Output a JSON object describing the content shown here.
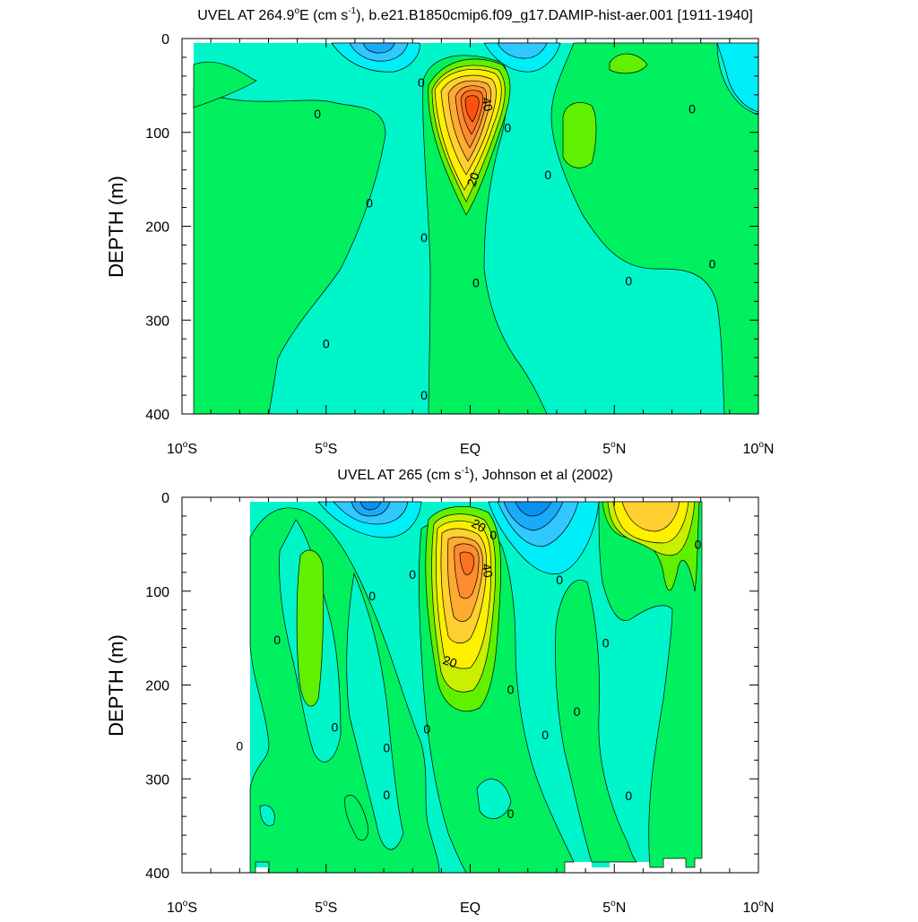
{
  "chart_data": [
    {
      "type": "contour",
      "title_prefix": "UVEL AT 264.9",
      "title_degree": "o",
      "title_mid": "E (cm s",
      "title_exp": "-1",
      "title_suffix": "), b.e21.B1850cmip6.f09_g17.DAMIP-hist-aer.001 [1911-1940]",
      "ylabel": "DEPTH (m)",
      "xlim": [
        -10,
        10
      ],
      "ylim": [
        400,
        0
      ],
      "xticks": [
        {
          "x": -10,
          "num": "10",
          "deg": "o",
          "hemi": "S"
        },
        {
          "x": -5,
          "num": "5",
          "deg": "o",
          "hemi": "S"
        },
        {
          "x": 0,
          "num": "EQ",
          "deg": "",
          "hemi": ""
        },
        {
          "x": 5,
          "num": "5",
          "deg": "o",
          "hemi": "N"
        },
        {
          "x": 10,
          "num": "10",
          "deg": "o",
          "hemi": "N"
        }
      ],
      "yticks": [
        "0",
        "100",
        "200",
        "300",
        "400"
      ],
      "contour_labels": [
        {
          "x": 0.6,
          "y": 70,
          "text": "40",
          "rot": 80
        },
        {
          "x": 0.1,
          "y": 150,
          "text": "20",
          "rot": -70
        },
        {
          "x": -1.7,
          "y": 47,
          "text": "0"
        },
        {
          "x": -5.3,
          "y": 80,
          "text": "0"
        },
        {
          "x": -3.5,
          "y": 175,
          "text": "0"
        },
        {
          "x": -1.6,
          "y": 212,
          "text": "0"
        },
        {
          "x": 0.2,
          "y": 260,
          "text": "0"
        },
        {
          "x": -5.0,
          "y": 325,
          "text": "0"
        },
        {
          "x": -1.6,
          "y": 380,
          "text": "0"
        },
        {
          "x": 1.3,
          "y": 95,
          "text": "0"
        },
        {
          "x": 2.7,
          "y": 145,
          "text": "0"
        },
        {
          "x": 7.7,
          "y": 75,
          "text": "0"
        },
        {
          "x": 8.4,
          "y": 240,
          "text": "0"
        },
        {
          "x": 5.5,
          "y": 258,
          "text": "0"
        }
      ]
    },
    {
      "type": "contour",
      "title_prefix": "UVEL AT 265 (cm s",
      "title_exp": "-1",
      "title_suffix": "), Johnson et al (2002)",
      "ylabel": "DEPTH (m)",
      "xlim": [
        -10,
        10
      ],
      "ylim": [
        400,
        0
      ],
      "xticks": [
        {
          "x": -10,
          "num": "10",
          "deg": "o",
          "hemi": "S"
        },
        {
          "x": -5,
          "num": "5",
          "deg": "o",
          "hemi": "S"
        },
        {
          "x": 0,
          "num": "EQ",
          "deg": "",
          "hemi": ""
        },
        {
          "x": 5,
          "num": "5",
          "deg": "o",
          "hemi": "N"
        },
        {
          "x": 10,
          "num": "10",
          "deg": "o",
          "hemi": "N"
        }
      ],
      "yticks": [
        "0",
        "100",
        "200",
        "300",
        "400"
      ],
      "contour_labels": [
        {
          "x": 0.3,
          "y": 30,
          "text": "20",
          "rot": 30
        },
        {
          "x": 0.6,
          "y": 78,
          "text": "40",
          "rot": 80
        },
        {
          "x": -0.7,
          "y": 175,
          "text": "20",
          "rot": 20
        },
        {
          "x": 0.8,
          "y": 40,
          "text": "0"
        },
        {
          "x": -2.0,
          "y": 82,
          "text": "0"
        },
        {
          "x": -3.4,
          "y": 105,
          "text": "0"
        },
        {
          "x": 3.1,
          "y": 88,
          "text": "0"
        },
        {
          "x": 7.9,
          "y": 50,
          "text": "0"
        },
        {
          "x": -6.7,
          "y": 152,
          "text": "0"
        },
        {
          "x": 4.7,
          "y": 155,
          "text": "0"
        },
        {
          "x": 1.4,
          "y": 205,
          "text": "0"
        },
        {
          "x": 3.7,
          "y": 228,
          "text": "0"
        },
        {
          "x": -8.0,
          "y": 265,
          "text": "0"
        },
        {
          "x": -4.7,
          "y": 245,
          "text": "0"
        },
        {
          "x": -2.9,
          "y": 267,
          "text": "0"
        },
        {
          "x": -1.5,
          "y": 247,
          "text": "0"
        },
        {
          "x": 2.6,
          "y": 253,
          "text": "0"
        },
        {
          "x": -2.9,
          "y": 317,
          "text": "0"
        },
        {
          "x": 1.4,
          "y": 337,
          "text": "0"
        },
        {
          "x": 5.5,
          "y": 318,
          "text": "0"
        }
      ]
    }
  ],
  "colors": {
    "l_neg20": "#0a90f0",
    "l_neg15": "#1aaaf8",
    "l_neg10": "#30c8ff",
    "l_neg5": "#00eef8",
    "l_0": "#00f5c8",
    "l_5": "#00f060",
    "l_10": "#60f000",
    "l_15": "#c8f000",
    "l_20": "#fff000",
    "l_25": "#ffd030",
    "l_30": "#ffaa30",
    "l_35": "#ff8c30",
    "l_40": "#ff7020",
    "l_45": "#ff5010",
    "missing": "#ffffff",
    "contour_line": "#000000"
  }
}
